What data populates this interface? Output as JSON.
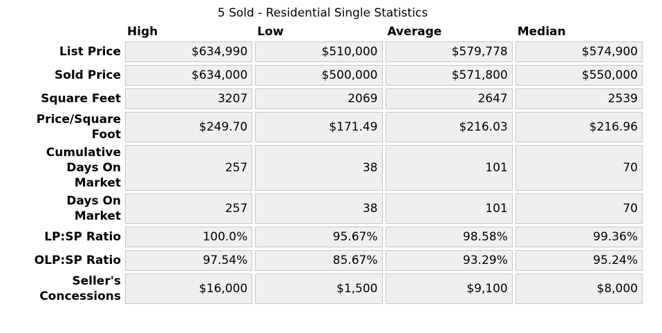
{
  "title": "5 Sold - Residential Single Statistics",
  "table": {
    "columns": [
      "High",
      "Low",
      "Average",
      "Median"
    ],
    "rows": [
      {
        "label": "List Price",
        "values": [
          "$634,990",
          "$510,000",
          "$579,778",
          "$574,900"
        ]
      },
      {
        "label": "Sold Price",
        "values": [
          "$634,000",
          "$500,000",
          "$571,800",
          "$550,000"
        ]
      },
      {
        "label": "Square Feet",
        "values": [
          "3207",
          "2069",
          "2647",
          "2539"
        ]
      },
      {
        "label": "Price/Square\nFoot",
        "values": [
          "$249.70",
          "$171.49",
          "$216.03",
          "$216.96"
        ]
      },
      {
        "label": "Cumulative\nDays On\nMarket",
        "values": [
          "257",
          "38",
          "101",
          "70"
        ]
      },
      {
        "label": "Days On\nMarket",
        "values": [
          "257",
          "38",
          "101",
          "70"
        ]
      },
      {
        "label": "LP:SP Ratio",
        "values": [
          "100.0%",
          "95.67%",
          "98.58%",
          "99.36%"
        ]
      },
      {
        "label": "OLP:SP Ratio",
        "values": [
          "97.54%",
          "85.67%",
          "93.29%",
          "95.24%"
        ]
      },
      {
        "label": "Seller's\nConcessions",
        "values": [
          "$16,000",
          "$1,500",
          "$9,100",
          "$8,000"
        ]
      }
    ]
  },
  "colors": {
    "page_background": "#ffffff",
    "cell_background": "#efefef",
    "cell_border": "#c6c6c6",
    "text": "#000000"
  }
}
